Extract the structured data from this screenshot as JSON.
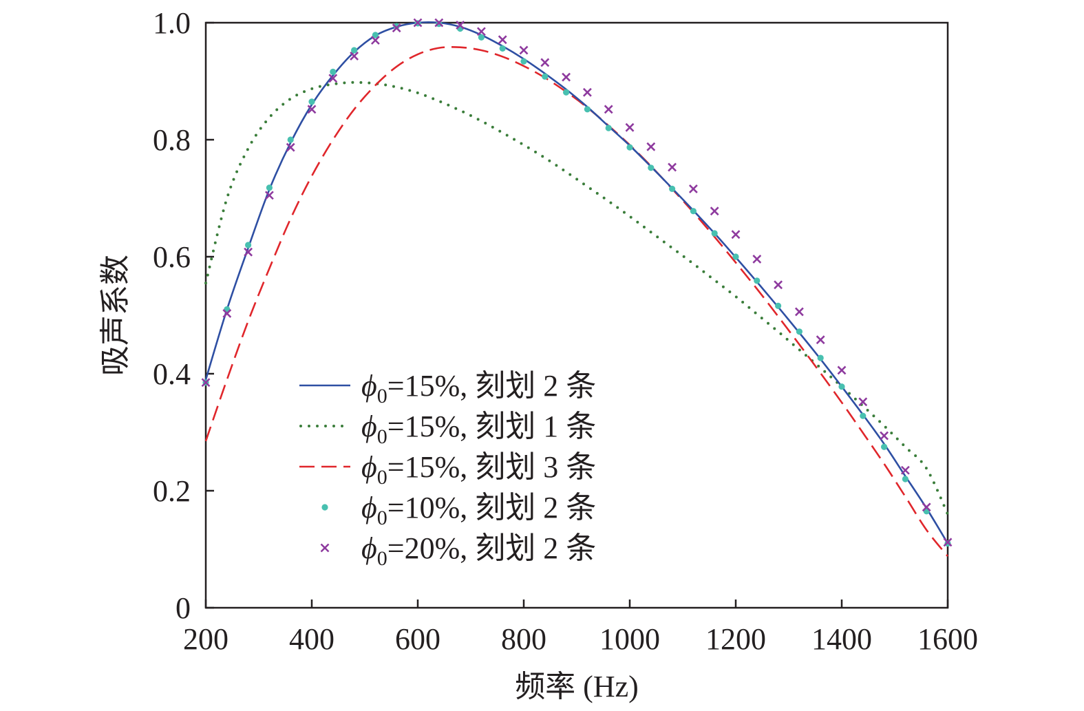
{
  "chart_data": {
    "type": "line",
    "title": "",
    "xlabel": "频率 (Hz)",
    "ylabel": "吸声系数",
    "xlim": [
      200,
      1600
    ],
    "ylim": [
      0,
      1.0
    ],
    "xticks": [
      200,
      400,
      600,
      800,
      1000,
      1200,
      1400,
      1600
    ],
    "xtick_labels": [
      "200",
      "400",
      "600",
      "800",
      "1000",
      "1200",
      "1400",
      "1600"
    ],
    "yticks": [
      0,
      0.2,
      0.4,
      0.6,
      0.8,
      1.0
    ],
    "ytick_labels": [
      "0",
      "0.2",
      "0.4",
      "0.6",
      "0.8",
      "1.0"
    ],
    "grid": false,
    "legend_position": "lower-left",
    "series": [
      {
        "name": "ϕ0=15%, 刻划 2 条",
        "legend_main": "ϕ",
        "legend_sub": "0",
        "legend_rest": "=15%, 刻划 2 条",
        "style": "solid",
        "color": "#2e4fa3",
        "x": [
          200,
          240,
          280,
          320,
          360,
          400,
          440,
          480,
          520,
          560,
          600,
          640,
          680,
          720,
          760,
          800,
          840,
          880,
          920,
          960,
          1000,
          1040,
          1080,
          1120,
          1160,
          1200,
          1240,
          1280,
          1320,
          1360,
          1400,
          1440,
          1480,
          1520,
          1560,
          1600
        ],
        "y": [
          0.39,
          0.51,
          0.615,
          0.715,
          0.795,
          0.86,
          0.91,
          0.95,
          0.978,
          0.993,
          1.0,
          1.0,
          0.993,
          0.979,
          0.96,
          0.938,
          0.913,
          0.886,
          0.856,
          0.823,
          0.79,
          0.754,
          0.717,
          0.679,
          0.64,
          0.599,
          0.557,
          0.514,
          0.47,
          0.425,
          0.378,
          0.33,
          0.28,
          0.225,
          0.17,
          0.11
        ]
      },
      {
        "name": "ϕ0=15%, 刻划 1 条",
        "legend_main": "ϕ",
        "legend_sub": "0",
        "legend_rest": "=15%, 刻划 1 条",
        "style": "dotted",
        "color": "#3a7d3a",
        "x": [
          200,
          240,
          280,
          320,
          360,
          400,
          440,
          480,
          520,
          560,
          600,
          640,
          680,
          720,
          760,
          800,
          840,
          880,
          920,
          960,
          1000,
          1040,
          1080,
          1120,
          1160,
          1200,
          1240,
          1280,
          1320,
          1360,
          1400,
          1440,
          1480,
          1520,
          1560,
          1600
        ],
        "y": [
          0.555,
          0.7,
          0.785,
          0.838,
          0.87,
          0.887,
          0.895,
          0.898,
          0.896,
          0.89,
          0.88,
          0.866,
          0.85,
          0.832,
          0.812,
          0.791,
          0.769,
          0.745,
          0.72,
          0.695,
          0.669,
          0.642,
          0.615,
          0.588,
          0.56,
          0.532,
          0.502,
          0.472,
          0.441,
          0.41,
          0.378,
          0.345,
          0.311,
          0.275,
          0.238,
          0.16
        ]
      },
      {
        "name": "ϕ0=15%, 刻划 3 条",
        "legend_main": "ϕ",
        "legend_sub": "0",
        "legend_rest": "=15%, 刻划 3 条",
        "style": "dashed",
        "color": "#e0262b",
        "x": [
          200,
          240,
          280,
          320,
          360,
          400,
          440,
          480,
          520,
          560,
          600,
          640,
          680,
          720,
          760,
          800,
          840,
          880,
          920,
          960,
          1000,
          1040,
          1080,
          1120,
          1160,
          1200,
          1240,
          1280,
          1320,
          1360,
          1400,
          1440,
          1480,
          1520,
          1560,
          1600
        ],
        "y": [
          0.285,
          0.39,
          0.49,
          0.58,
          0.665,
          0.738,
          0.8,
          0.852,
          0.893,
          0.925,
          0.946,
          0.957,
          0.958,
          0.953,
          0.942,
          0.926,
          0.906,
          0.882,
          0.855,
          0.824,
          0.791,
          0.755,
          0.716,
          0.676,
          0.634,
          0.59,
          0.545,
          0.498,
          0.45,
          0.401,
          0.351,
          0.299,
          0.246,
          0.19,
          0.133,
          0.088
        ]
      },
      {
        "name": "ϕ0=10%, 刻划 2 条",
        "legend_main": "ϕ",
        "legend_sub": "0",
        "legend_rest": "=10%, 刻划 2 条",
        "style": "marker-dot",
        "color": "#48c0b0",
        "x": [
          200,
          240,
          280,
          320,
          360,
          400,
          440,
          480,
          520,
          560,
          600,
          640,
          680,
          720,
          760,
          800,
          840,
          880,
          920,
          960,
          1000,
          1040,
          1080,
          1120,
          1160,
          1200,
          1240,
          1280,
          1320,
          1360,
          1400,
          1440,
          1480,
          1520,
          1560,
          1600
        ],
        "y": [
          0.385,
          0.51,
          0.62,
          0.718,
          0.8,
          0.865,
          0.916,
          0.953,
          0.979,
          0.994,
          0.999,
          0.998,
          0.99,
          0.975,
          0.956,
          0.934,
          0.908,
          0.881,
          0.852,
          0.82,
          0.787,
          0.752,
          0.716,
          0.678,
          0.64,
          0.6,
          0.559,
          0.516,
          0.472,
          0.427,
          0.378,
          0.328,
          0.275,
          0.22,
          0.165,
          0.11
        ]
      },
      {
        "name": "ϕ0=20%, 刻划 2 条",
        "legend_main": "ϕ",
        "legend_sub": "0",
        "legend_rest": "=20%, 刻划 2 条",
        "style": "marker-x",
        "color": "#8e3a9e",
        "x": [
          200,
          240,
          280,
          320,
          360,
          400,
          440,
          480,
          520,
          560,
          600,
          640,
          680,
          720,
          760,
          800,
          840,
          880,
          920,
          960,
          1000,
          1040,
          1080,
          1120,
          1160,
          1200,
          1240,
          1280,
          1320,
          1360,
          1400,
          1440,
          1480,
          1520,
          1560,
          1600
        ],
        "y": [
          0.385,
          0.503,
          0.608,
          0.705,
          0.787,
          0.852,
          0.905,
          0.943,
          0.97,
          0.991,
          1.0,
          1.0,
          0.996,
          0.985,
          0.971,
          0.953,
          0.932,
          0.907,
          0.881,
          0.852,
          0.821,
          0.788,
          0.753,
          0.716,
          0.678,
          0.638,
          0.596,
          0.552,
          0.506,
          0.458,
          0.406,
          0.352,
          0.294,
          0.235,
          0.172,
          0.112
        ]
      }
    ]
  }
}
